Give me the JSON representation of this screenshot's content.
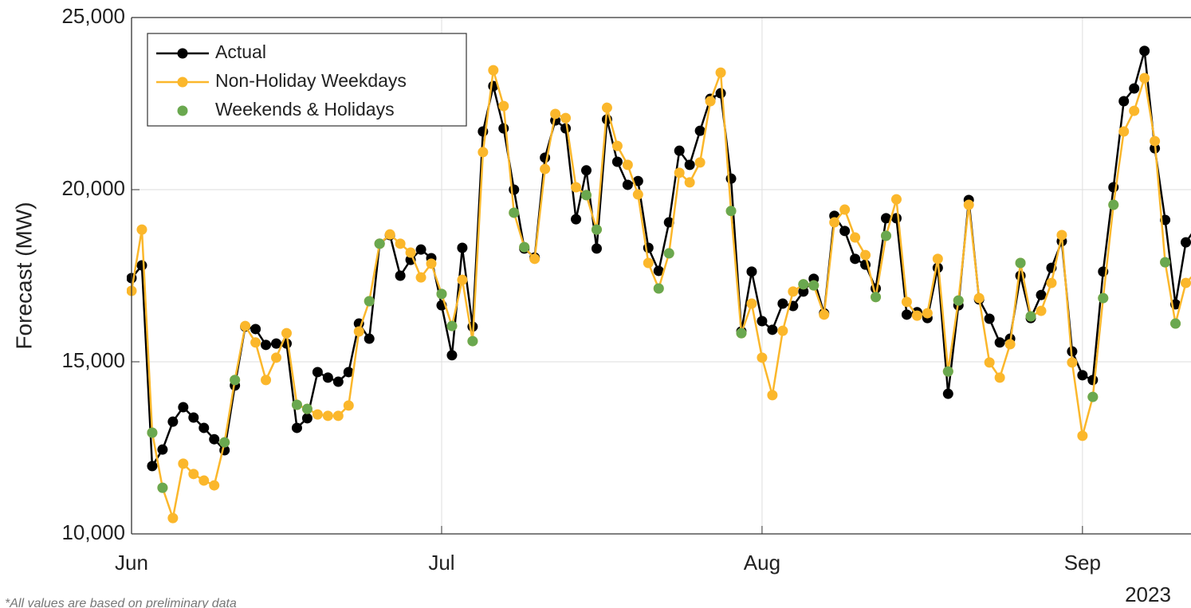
{
  "chart_data": {
    "type": "line",
    "y_label": "Forecast (MW)",
    "x_secondary_label": "2023",
    "footnote": "*All values are based on preliminary data",
    "x": [
      0,
      1,
      2,
      3,
      4,
      5,
      6,
      7,
      8,
      9,
      10,
      11,
      12,
      13,
      14,
      15,
      16,
      17,
      18,
      19,
      20,
      21,
      22,
      23,
      24,
      25,
      26,
      27,
      28,
      29,
      30,
      31,
      32,
      33,
      34,
      35,
      36,
      37,
      38,
      39,
      40,
      41,
      42,
      43,
      44,
      45,
      46,
      47,
      48,
      49,
      50,
      51,
      52,
      53,
      54,
      55,
      56,
      57,
      58,
      59,
      60,
      61,
      62,
      63,
      64,
      65,
      66,
      67,
      68,
      69,
      70,
      71,
      72,
      73,
      74,
      75,
      76,
      77,
      78,
      79,
      80,
      81,
      82,
      83,
      84,
      85,
      86,
      87,
      88,
      89,
      90,
      91,
      92,
      93,
      94,
      95,
      96,
      97,
      98,
      99,
      100,
      101,
      102,
      103
    ],
    "xlim": [
      0,
      102.5
    ],
    "xticks": [
      {
        "value": 0,
        "label": "Jun"
      },
      {
        "value": 30,
        "label": "Jul"
      },
      {
        "value": 61,
        "label": "Aug"
      },
      {
        "value": 92,
        "label": "Sep"
      }
    ],
    "ylim": [
      10000,
      25000
    ],
    "yticks": [
      {
        "value": 10000,
        "label": "10,000"
      },
      {
        "value": 15000,
        "label": "15,000"
      },
      {
        "value": 20000,
        "label": "20,000"
      },
      {
        "value": 25000,
        "label": "25,000"
      }
    ],
    "grid": true,
    "legend": "upper left",
    "series": [
      {
        "name": "Actual",
        "color": "#000000",
        "style": "line-marker",
        "values": [
          17430,
          17800,
          11970,
          12450,
          13260,
          13680,
          13380,
          13080,
          12750,
          12430,
          14310,
          16020,
          15950,
          15490,
          15530,
          15530,
          13080,
          13360,
          14700,
          14540,
          14420,
          14700,
          16110,
          15670,
          18430,
          18680,
          17500,
          17960,
          18260,
          18010,
          16640,
          15190,
          18310,
          16020,
          21690,
          23010,
          21780,
          20000,
          18290,
          18030,
          20930,
          22010,
          21780,
          19140,
          20560,
          18290,
          22040,
          20810,
          20140,
          20250,
          18310,
          17640,
          19050,
          21130,
          20720,
          21710,
          22640,
          22800,
          20320,
          15880,
          17620,
          16180,
          15930,
          16690,
          16620,
          17040,
          17410,
          16410,
          19240,
          18800,
          17990,
          17820,
          17130,
          19170,
          19170,
          16370,
          16440,
          16270,
          17730,
          14070,
          16640,
          19700,
          16810,
          16250,
          15560,
          15670,
          17500,
          16270,
          16940,
          17730,
          18500,
          15300,
          14610,
          14470,
          17620,
          20070,
          22570,
          22940,
          24030,
          21200,
          19120,
          16670,
          18470,
          18900
        ]
      },
      {
        "name": "Non-Holiday Weekdays",
        "color": "#fbb72b",
        "style": "line-marker",
        "values": [
          17060,
          18840,
          12940,
          11340,
          10460,
          12040,
          11740,
          11550,
          11410,
          12660,
          14470,
          16040,
          15560,
          14470,
          15120,
          15830,
          13750,
          13630,
          13470,
          13430,
          13430,
          13730,
          15880,
          16760,
          18430,
          18700,
          18430,
          18170,
          17450,
          17850,
          16970,
          16040,
          17380,
          15600,
          21090,
          23470,
          22430,
          19330,
          18330,
          17990,
          20600,
          22200,
          22080,
          20070,
          19840,
          18840,
          22380,
          21270,
          20720,
          19860,
          17870,
          17130,
          18150,
          20490,
          20210,
          20790,
          22570,
          23400,
          19380,
          15830,
          16690,
          15120,
          14030,
          15900,
          17040,
          17250,
          17220,
          16370,
          19050,
          19420,
          18610,
          18100,
          16880,
          18660,
          19720,
          16740,
          16340,
          16410,
          17990,
          14720,
          16780,
          19560,
          16850,
          14980,
          14540,
          15510,
          17870,
          16320,
          16480,
          17290,
          18680,
          14980,
          12850,
          13980,
          16850,
          19560,
          21690,
          22290,
          23240,
          21410,
          17890,
          16110,
          17290,
          17600
        ]
      },
      {
        "name": "Weekends & Holidays",
        "color": "#6aa84f",
        "style": "marker",
        "values": [
          null,
          null,
          12940,
          11340,
          null,
          null,
          null,
          null,
          null,
          12660,
          14470,
          null,
          null,
          null,
          null,
          null,
          13750,
          13630,
          null,
          null,
          null,
          null,
          null,
          16760,
          18430,
          null,
          null,
          null,
          null,
          null,
          16970,
          16040,
          null,
          15600,
          null,
          null,
          null,
          19330,
          18330,
          null,
          null,
          null,
          null,
          null,
          19840,
          18840,
          null,
          null,
          null,
          null,
          null,
          17130,
          18150,
          null,
          null,
          null,
          null,
          null,
          19380,
          15830,
          null,
          null,
          null,
          null,
          null,
          17250,
          17220,
          null,
          null,
          null,
          null,
          null,
          16880,
          18660,
          null,
          null,
          null,
          null,
          null,
          14720,
          16780,
          null,
          null,
          null,
          null,
          null,
          17870,
          16320,
          null,
          null,
          null,
          null,
          null,
          13980,
          16850,
          19560,
          null,
          null,
          null,
          null,
          17890,
          16110,
          null,
          null
        ]
      }
    ]
  }
}
